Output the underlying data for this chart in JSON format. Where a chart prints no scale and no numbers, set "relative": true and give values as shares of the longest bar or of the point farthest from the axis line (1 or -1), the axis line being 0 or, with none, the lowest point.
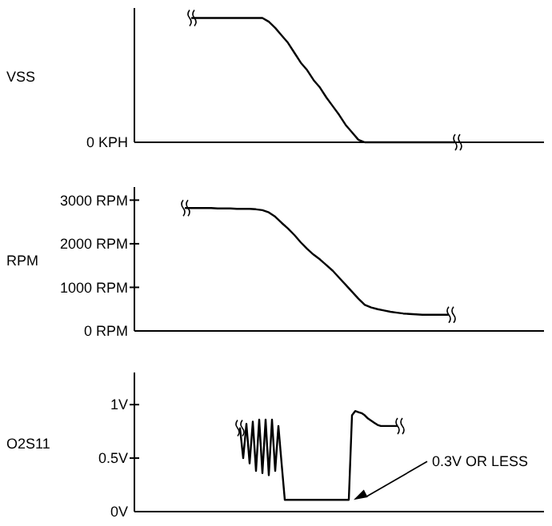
{
  "chart_data": [
    {
      "type": "line",
      "ylabel": "VSS",
      "relative": true,
      "annotations": [
        "0 KPH"
      ],
      "categories": [
        null,
        null,
        null,
        null,
        null,
        null,
        null,
        null,
        null,
        null,
        null,
        null,
        null,
        null,
        null,
        null,
        null,
        null,
        null,
        null,
        null,
        null,
        null,
        null,
        null,
        null,
        null,
        null,
        null,
        null,
        null,
        null,
        null,
        null,
        null,
        null,
        null,
        null,
        null,
        null,
        null,
        null,
        null,
        null,
        null,
        null,
        null,
        null,
        null,
        null,
        null,
        null,
        null,
        null,
        null,
        null,
        null,
        null,
        null,
        null,
        null,
        null,
        null,
        null,
        null
      ],
      "series": [
        {
          "color": "#000000",
          "values": [
            null,
            null,
            null,
            null,
            null,
            null,
            null,
            null,
            null,
            1,
            1,
            1,
            1,
            1,
            1,
            1,
            1,
            1,
            1,
            1,
            1,
            0.97,
            0.92,
            0.86,
            0.8,
            0.72,
            0.64,
            0.58,
            0.5,
            0.44,
            0.36,
            0.29,
            0.22,
            0.14,
            0.08,
            0.02,
            0,
            0,
            0,
            0,
            0,
            0,
            0,
            0,
            0,
            0,
            0,
            0,
            0,
            0,
            0,
            null,
            null,
            null,
            null,
            null,
            null,
            null,
            null,
            null,
            null,
            null,
            null,
            null,
            null
          ]
        }
      ]
    },
    {
      "type": "line",
      "ylabel": "RPM",
      "ylim": [
        0,
        3300
      ],
      "yticks": [
        {
          "value": 0,
          "label": "0 RPM"
        },
        {
          "value": 1000,
          "label": "1000 RPM"
        },
        {
          "value": 2000,
          "label": "2000 RPM"
        },
        {
          "value": 3000,
          "label": "3000 RPM"
        }
      ],
      "categories": [
        null,
        null,
        null,
        null,
        null,
        null,
        null,
        null,
        null,
        null,
        null,
        null,
        null,
        null,
        null,
        null,
        null,
        null,
        null,
        null,
        null,
        null,
        null,
        null,
        null,
        null,
        null,
        null,
        null,
        null,
        null,
        null,
        null,
        null,
        null,
        null,
        null,
        null,
        null,
        null,
        null,
        null,
        null,
        null,
        null,
        null,
        null,
        null,
        null,
        null,
        null,
        null,
        null,
        null,
        null,
        null,
        null,
        null,
        null,
        null,
        null,
        null,
        null,
        null,
        null
      ],
      "series": [
        {
          "color": "#000000",
          "values": [
            null,
            null,
            null,
            null,
            null,
            null,
            null,
            null,
            2820,
            2820,
            2820,
            2820,
            2820,
            2810,
            2810,
            2810,
            2800,
            2800,
            2800,
            2790,
            2770,
            2720,
            2620,
            2480,
            2350,
            2200,
            2030,
            1880,
            1750,
            1640,
            1510,
            1380,
            1220,
            1060,
            900,
            740,
            600,
            540,
            500,
            470,
            440,
            420,
            400,
            390,
            380,
            370,
            370,
            370,
            370,
            370,
            null,
            null,
            null,
            null,
            null,
            null,
            null,
            null,
            null,
            null,
            null,
            null,
            null,
            null,
            null
          ]
        }
      ]
    },
    {
      "type": "line",
      "ylabel": "O2S11",
      "ylim": [
        0,
        1.3
      ],
      "yticks": [
        {
          "value": 0,
          "label": "0V"
        },
        {
          "value": 0.5,
          "label": "0.5V"
        },
        {
          "value": 1,
          "label": "1V"
        }
      ],
      "annotations": [
        "0.3V OR LESS"
      ],
      "categories": [
        null,
        null,
        null,
        null,
        null,
        null,
        null,
        null,
        null,
        null,
        null,
        null,
        null,
        null,
        null,
        null,
        null,
        null,
        null,
        null,
        null,
        null,
        null,
        null,
        null,
        null,
        null,
        null,
        null,
        null,
        null,
        null,
        null,
        null,
        null,
        null,
        null,
        null,
        null,
        null,
        null,
        null,
        null,
        null,
        null,
        null,
        null,
        null,
        null,
        null,
        null,
        null,
        null,
        null,
        null,
        null,
        null,
        null,
        null,
        null,
        null,
        null,
        null,
        null,
        null,
        null,
        null,
        null,
        null,
        null,
        null,
        null,
        null,
        null,
        null,
        null,
        null,
        null,
        null,
        null,
        null,
        null,
        null,
        null,
        null,
        null,
        null,
        null,
        null,
        null,
        null,
        null,
        null,
        null,
        null,
        null,
        null,
        null,
        null,
        null,
        null,
        null,
        null,
        null,
        null,
        null,
        null,
        null,
        null,
        null,
        null,
        null,
        null,
        null,
        null,
        null,
        null,
        null,
        null,
        null,
        null,
        null,
        null,
        null,
        null,
        null,
        null,
        null,
        null
      ],
      "series": [
        {
          "color": "#000000",
          "values": [
            null,
            null,
            null,
            null,
            null,
            null,
            null,
            null,
            null,
            null,
            null,
            null,
            null,
            null,
            null,
            null,
            null,
            null,
            null,
            null,
            null,
            null,
            null,
            null,
            null,
            null,
            null,
            null,
            null,
            null,
            null,
            null,
            null,
            0.78,
            0.5,
            0.82,
            0.45,
            0.84,
            0.38,
            0.86,
            0.36,
            0.86,
            0.34,
            0.86,
            0.38,
            0.8,
            0.45,
            0.11,
            0.11,
            0.11,
            0.11,
            0.11,
            0.11,
            0.11,
            0.11,
            0.11,
            0.11,
            0.11,
            0.11,
            0.11,
            0.11,
            0.11,
            0.11,
            0.11,
            0.11,
            0.11,
            0.11,
            0.11,
            0.9,
            0.94,
            0.93,
            0.92,
            0.9,
            0.87,
            0.85,
            0.83,
            0.81,
            0.8,
            0.8,
            0.8,
            0.8,
            0.8,
            0.8,
            null,
            null,
            null,
            null,
            null,
            null,
            null,
            null,
            null,
            null,
            null,
            null,
            null,
            null,
            null,
            null,
            null,
            null,
            null,
            null,
            null,
            null,
            null,
            null,
            null,
            null,
            null,
            null,
            null,
            null,
            null,
            null,
            null,
            null,
            null,
            null,
            null,
            null,
            null,
            null,
            null,
            null,
            null,
            null,
            null,
            null
          ]
        }
      ]
    }
  ]
}
